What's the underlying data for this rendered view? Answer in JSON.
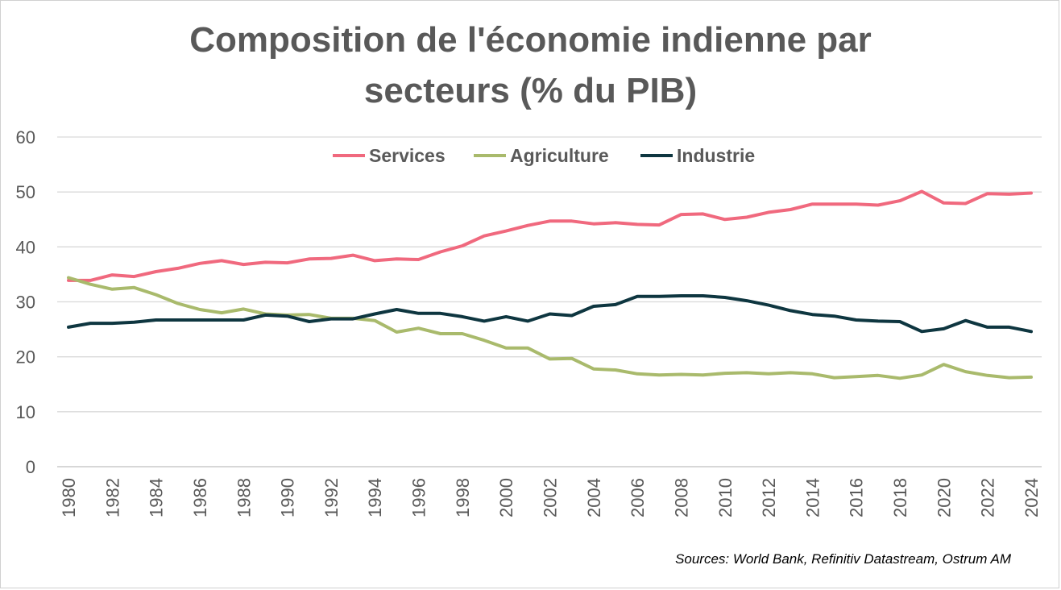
{
  "chart_data": {
    "type": "line",
    "title_line1": "Composition de l'économie indienne par",
    "title_line2": "secteurs (% du PIB)",
    "source": "Sources: World Bank, Refinitiv Datastream, Ostrum AM",
    "ylim": [
      0,
      60
    ],
    "yticks": [
      "0",
      "10",
      "20",
      "30",
      "40",
      "50",
      "60"
    ],
    "xlim": [
      1980,
      2024
    ],
    "xticks": [
      "1980",
      "1982",
      "1984",
      "1986",
      "1988",
      "1990",
      "1992",
      "1994",
      "1996",
      "1998",
      "2000",
      "2002",
      "2004",
      "2006",
      "2008",
      "2010",
      "2012",
      "2014",
      "2016",
      "2018",
      "2020",
      "2022",
      "2024"
    ],
    "grid": true,
    "legend_position": "top",
    "x": [
      1980,
      1981,
      1982,
      1983,
      1984,
      1985,
      1986,
      1987,
      1988,
      1989,
      1990,
      1991,
      1992,
      1993,
      1994,
      1995,
      1996,
      1997,
      1998,
      1999,
      2000,
      2001,
      2002,
      2003,
      2004,
      2005,
      2006,
      2007,
      2008,
      2009,
      2010,
      2011,
      2012,
      2013,
      2014,
      2015,
      2016,
      2017,
      2018,
      2019,
      2020,
      2021,
      2022,
      2023,
      2024
    ],
    "series": [
      {
        "name": "Services",
        "color": "#F0697E",
        "values": [
          33.9,
          33.9,
          34.9,
          34.6,
          35.5,
          36.1,
          37.0,
          37.5,
          36.8,
          37.2,
          37.1,
          37.8,
          37.9,
          38.5,
          37.5,
          37.8,
          37.7,
          39.1,
          40.2,
          42.0,
          42.9,
          43.9,
          44.7,
          44.7,
          44.2,
          44.4,
          44.1,
          44.0,
          45.9,
          46.0,
          45.0,
          45.4,
          46.3,
          46.8,
          47.8,
          47.8,
          47.8,
          47.6,
          48.4,
          50.1,
          48.0,
          47.9,
          49.7,
          49.6,
          49.8
        ]
      },
      {
        "name": "Agriculture",
        "color": "#A9BA6C",
        "values": [
          34.4,
          33.2,
          32.3,
          32.6,
          31.3,
          29.7,
          28.6,
          28.0,
          28.7,
          27.8,
          27.6,
          27.7,
          27.0,
          27.0,
          26.6,
          24.5,
          25.2,
          24.2,
          24.2,
          23.0,
          21.6,
          21.6,
          19.6,
          19.7,
          17.8,
          17.6,
          16.9,
          16.7,
          16.8,
          16.7,
          17.0,
          17.1,
          16.9,
          17.1,
          16.9,
          16.2,
          16.4,
          16.6,
          16.1,
          16.7,
          18.6,
          17.3,
          16.6,
          16.2,
          16.3
        ]
      },
      {
        "name": "Industrie",
        "color": "#0E3640",
        "values": [
          25.4,
          26.1,
          26.1,
          26.3,
          26.7,
          26.7,
          26.7,
          26.7,
          26.7,
          27.6,
          27.4,
          26.4,
          26.9,
          26.9,
          27.8,
          28.6,
          27.9,
          27.9,
          27.3,
          26.5,
          27.3,
          26.5,
          27.8,
          27.5,
          29.2,
          29.5,
          31.0,
          31.0,
          31.1,
          31.1,
          30.8,
          30.2,
          29.4,
          28.4,
          27.7,
          27.4,
          26.7,
          26.5,
          26.4,
          24.6,
          25.1,
          26.6,
          25.4,
          25.4,
          24.6
        ]
      }
    ]
  }
}
